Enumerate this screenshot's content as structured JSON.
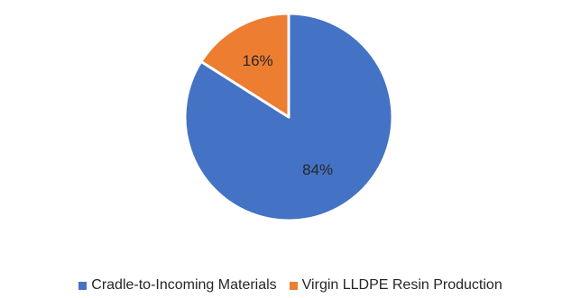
{
  "chart_data": {
    "type": "pie",
    "title": "",
    "categories": [
      "Cradle-to-Incoming Materials",
      "Virgin LLDPE Resin Production"
    ],
    "values": [
      84,
      16
    ],
    "value_labels": [
      "84%",
      "16%"
    ],
    "colors": [
      "#4472C4",
      "#ED7D31"
    ],
    "legend_position": "bottom"
  },
  "legend": {
    "items": [
      {
        "label": "Cradle-to-Incoming Materials",
        "color": "#4472C4"
      },
      {
        "label": "Virgin LLDPE Resin Production",
        "color": "#ED7D31"
      }
    ]
  }
}
